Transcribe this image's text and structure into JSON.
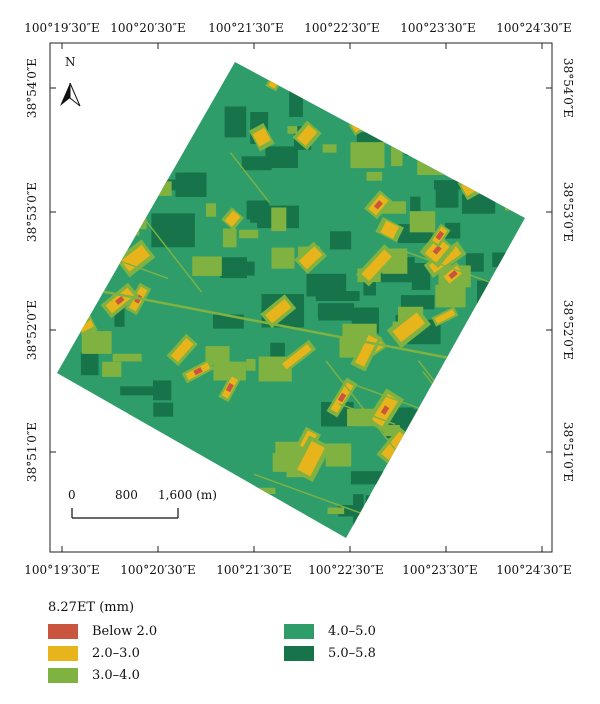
{
  "axes": {
    "lon_labels": [
      "100°19′30″E",
      "100°20′30″E",
      "100°21′30″E",
      "100°22′30″E",
      "100°23′30″E",
      "100°24′30″E"
    ],
    "lat_labels": [
      "38°54′0″E",
      "38°53′0″E",
      "38°52′0″E",
      "38°51′0″E"
    ]
  },
  "north_arrow": {
    "label": "N",
    "icon": "north-arrow-icon"
  },
  "scale_bar": {
    "labels": [
      "0",
      "800",
      "1,600 (m)"
    ]
  },
  "legend": {
    "title": "8.27ET (mm)",
    "items": [
      {
        "label": "Below 2.0",
        "color": "#c9553f"
      },
      {
        "label": "2.0–3.0",
        "color": "#e8b41c"
      },
      {
        "label": "3.0–4.0",
        "color": "#7fb241"
      },
      {
        "label": "4.0–5.0",
        "color": "#2f9d6a"
      },
      {
        "label": "5.0–5.8",
        "color": "#17744a"
      }
    ]
  }
}
